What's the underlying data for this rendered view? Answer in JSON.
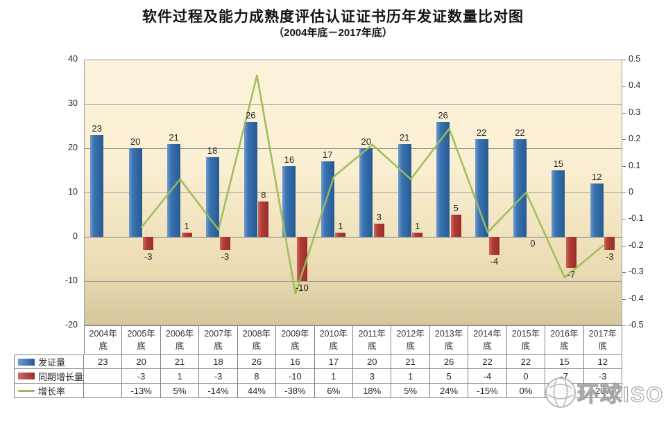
{
  "title": "软件过程及能力成熟度评估认证证书历年发证数量比对图",
  "subtitle": "（2004年底－2017年底）",
  "watermark_text": "环球ISO",
  "colors": {
    "bar_certificates": "#2E6DA8",
    "bar_growth_amount": "#B03431",
    "line_growth_rate": "#9BBB59",
    "plot_bg_top": "#FDF3DC",
    "plot_bg_bottom": "#D6C69C",
    "grid": "#9A9A9A"
  },
  "chart_data": {
    "type": "bar",
    "subtype": "clustered-bars-with-line",
    "title": "软件过程及能力成熟度评估认证证书历年发证数量比对图",
    "subtitle": "（2004年底－2017年底）",
    "categories": [
      "2004年底",
      "2005年底",
      "2006年底",
      "2007年底",
      "2008年底",
      "2009年底",
      "2010年底",
      "2011年底",
      "2012年底",
      "2013年底",
      "2014年底",
      "2015年底",
      "2016年底",
      "2017年底"
    ],
    "series": [
      {
        "name": "发证量",
        "type": "bar",
        "axis": "left",
        "values": [
          23,
          20,
          21,
          18,
          26,
          16,
          17,
          20,
          21,
          26,
          22,
          22,
          15,
          12
        ],
        "labels": [
          "23",
          "20",
          "21",
          "18",
          "26",
          "16",
          "17",
          "20",
          "21",
          "26",
          "22",
          "22",
          "15",
          "12"
        ]
      },
      {
        "name": "同期增长量",
        "type": "bar",
        "axis": "left",
        "values": [
          null,
          -3,
          1,
          -3,
          8,
          -10,
          1,
          3,
          1,
          5,
          -4,
          0,
          -7,
          -3
        ],
        "labels": [
          "",
          "-3",
          "1",
          "-3",
          "8",
          "-10",
          "1",
          "3",
          "1",
          "5",
          "-4",
          "0",
          "-7",
          "-3"
        ]
      },
      {
        "name": "增长率",
        "type": "line",
        "axis": "right",
        "values": [
          null,
          -0.13,
          0.05,
          -0.14,
          0.44,
          -0.38,
          0.06,
          0.18,
          0.05,
          0.24,
          -0.15,
          0,
          -0.32,
          -0.2
        ]
      }
    ],
    "left_axis": {
      "min": -20,
      "max": 40,
      "step": 10,
      "tick_labels": [
        "40",
        "30",
        "20",
        "10",
        "0",
        "-10",
        "-20"
      ]
    },
    "right_axis": {
      "min": -0.5,
      "max": 0.5,
      "step": 0.1,
      "tick_labels": [
        "0.5",
        "0.4",
        "0.3",
        "0.2",
        "0.1",
        "0",
        "-0.1",
        "-0.2",
        "-0.3",
        "-0.4",
        "-0.5"
      ]
    },
    "grid": true,
    "legend_position": "data-table-left",
    "data_table": {
      "rows": [
        {
          "name": "发证量",
          "swatch": "blue",
          "cells": [
            "23",
            "20",
            "21",
            "18",
            "26",
            "16",
            "17",
            "20",
            "21",
            "26",
            "22",
            "22",
            "15",
            "12"
          ]
        },
        {
          "name": "同期增长量",
          "swatch": "red",
          "cells": [
            "",
            "-3",
            "1",
            "-3",
            "8",
            "-10",
            "1",
            "3",
            "1",
            "5",
            "-4",
            "0",
            "-7",
            "-3"
          ]
        },
        {
          "name": "增长率",
          "swatch": "line",
          "cells": [
            "",
            "-13%",
            "5%",
            "-14%",
            "44%",
            "-38%",
            "6%",
            "18%",
            "5%",
            "24%",
            "-15%",
            "0%",
            "-32%",
            "-20%"
          ]
        }
      ]
    }
  }
}
